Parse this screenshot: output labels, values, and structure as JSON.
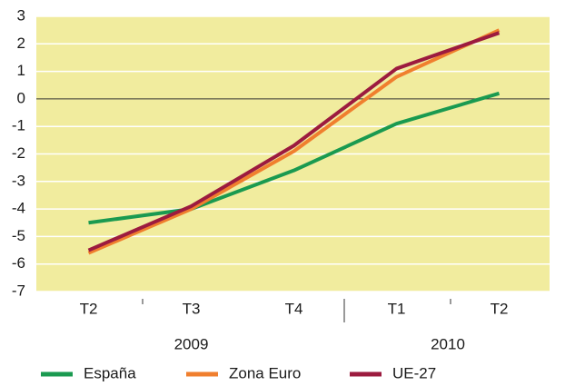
{
  "chart_data": {
    "type": "line",
    "categories": [
      "T2",
      "T3",
      "T4",
      "T1",
      "T2"
    ],
    "years": [
      "2009",
      "2010"
    ],
    "series": [
      {
        "name": "España",
        "color": "#1a9a50",
        "values": [
          -4.5,
          -4.0,
          -2.6,
          -0.9,
          0.2
        ]
      },
      {
        "name": "Zona Euro",
        "color": "#f07f2e",
        "values": [
          -5.6,
          -4.0,
          -1.9,
          0.8,
          2.5
        ]
      },
      {
        "name": "UE-27",
        "color": "#9c1b3f",
        "values": [
          -5.5,
          -3.9,
          -1.7,
          1.1,
          2.4
        ]
      }
    ],
    "ylim": [
      -7,
      3
    ],
    "yticks": [
      -7,
      -6,
      -5,
      -4,
      -3,
      -2,
      -1,
      0,
      1,
      2,
      3
    ],
    "grid": true,
    "plot_background": "#f1ec9e"
  }
}
